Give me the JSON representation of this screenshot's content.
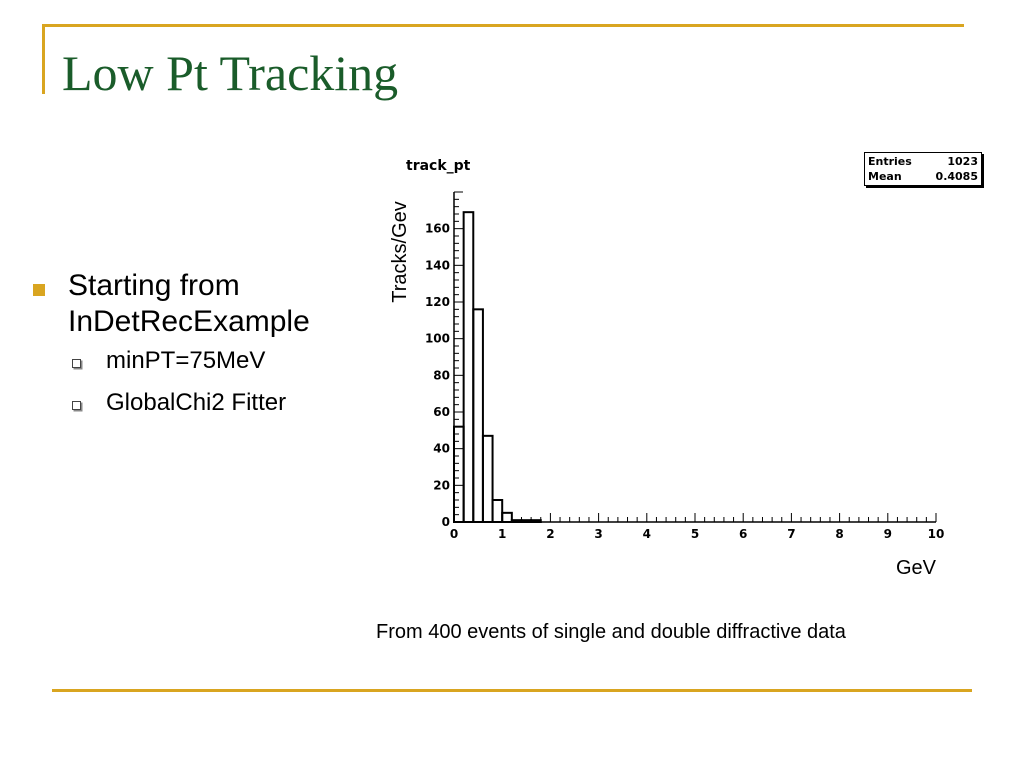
{
  "slide": {
    "title": "Low Pt Tracking",
    "bullets": [
      {
        "text": "Starting from InDetRecExample",
        "sub": [
          "minPT=75MeV",
          "GlobalChi2 Fitter"
        ]
      }
    ],
    "caption": "From 400 events of single and double diffractive data"
  },
  "colors": {
    "title": "#1a5c2a",
    "accent": "#d9a520"
  },
  "stats": {
    "entries_label": "Entries",
    "entries_value": "1023",
    "mean_label": "Mean",
    "mean_value": "0.4085"
  },
  "chart_data": {
    "type": "bar",
    "title": "track_pt",
    "xlabel": "GeV",
    "ylabel": "Tracks/Gev",
    "xlim": [
      0,
      10
    ],
    "ylim": [
      0,
      180
    ],
    "bin_width": 0.2,
    "bin_edges_start": 0,
    "values": [
      52,
      169,
      116,
      47,
      12,
      5,
      1,
      1,
      1,
      0,
      0,
      0,
      0,
      0,
      0,
      0,
      0,
      0,
      0,
      0,
      0,
      0,
      0,
      0,
      0,
      0,
      0,
      0,
      0,
      0,
      0,
      0,
      0,
      0,
      0,
      0,
      0,
      0,
      0,
      0,
      0,
      0,
      0,
      0,
      0,
      0,
      0,
      0,
      0,
      0
    ],
    "x_ticks": [
      0,
      1,
      2,
      3,
      4,
      5,
      6,
      7,
      8,
      9,
      10
    ],
    "y_ticks": [
      0,
      20,
      40,
      60,
      80,
      100,
      120,
      140,
      160
    ],
    "grid": false
  }
}
